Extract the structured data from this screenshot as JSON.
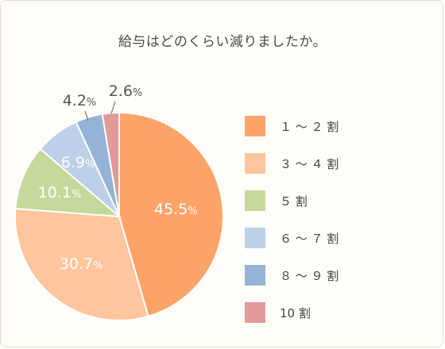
{
  "title": "給与はどのくらい減りましたか。",
  "chart_data": {
    "type": "pie",
    "title": "給与はどのくらい減りましたか。",
    "categories": [
      "１～２割",
      "３～４割",
      "５割",
      "６～７割",
      "８～９割",
      "10 割"
    ],
    "values": [
      45.5,
      30.7,
      10.1,
      6.9,
      4.2,
      2.6
    ],
    "value_labels": [
      "45.5",
      "30.7",
      "10.1",
      "6.9",
      "4.2",
      "2.6"
    ],
    "unit": "%",
    "colors": [
      "#ffa468",
      "#ffc59c",
      "#c4d99b",
      "#bcd0e8",
      "#93b4d6",
      "#e09a99"
    ],
    "legend_position": "right",
    "start": "12 o'clock",
    "direction": "clockwise"
  },
  "legend": [
    {
      "label": "１ ～ ２ 割"
    },
    {
      "label": "３ ～ ４ 割"
    },
    {
      "label": "５ 割"
    },
    {
      "label": "６ ～ ７ 割"
    },
    {
      "label": "８ ～ ９ 割"
    },
    {
      "label": "10 割"
    }
  ]
}
